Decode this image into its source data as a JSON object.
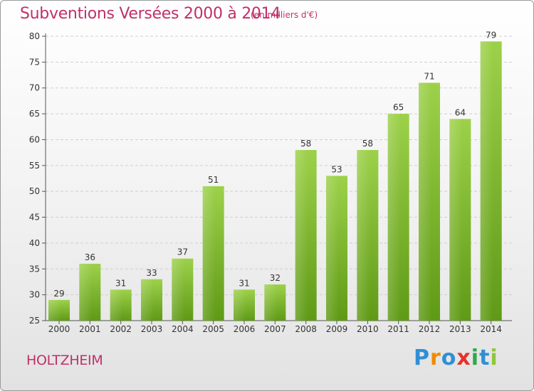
{
  "header": {
    "title": "Subventions Versées 2000 à 2014",
    "subtitle": "(en milliers d'€)"
  },
  "footer": {
    "commune": "HOLTZHEIM",
    "logo_text": "Proxiti",
    "logo_colors": [
      "#2f8fd6",
      "#f08a00",
      "#2f8fd6",
      "#e8302a",
      "#2fa84a",
      "#2f8fd6",
      "#8fc63c"
    ]
  },
  "chart_data": {
    "type": "bar",
    "title": "Subventions Versées 2000 à 2014",
    "categories": [
      "2000",
      "2001",
      "2002",
      "2003",
      "2004",
      "2005",
      "2006",
      "2007",
      "2008",
      "2009",
      "2010",
      "2011",
      "2012",
      "2013",
      "2014"
    ],
    "values": [
      29,
      36,
      31,
      33,
      37,
      51,
      31,
      32,
      58,
      53,
      58,
      65,
      71,
      64,
      79
    ],
    "ylim": [
      25,
      80
    ],
    "yticks": [
      25,
      30,
      35,
      40,
      45,
      50,
      55,
      60,
      65,
      70,
      75,
      80
    ],
    "grid": true,
    "bar_color": "#7ab730"
  }
}
